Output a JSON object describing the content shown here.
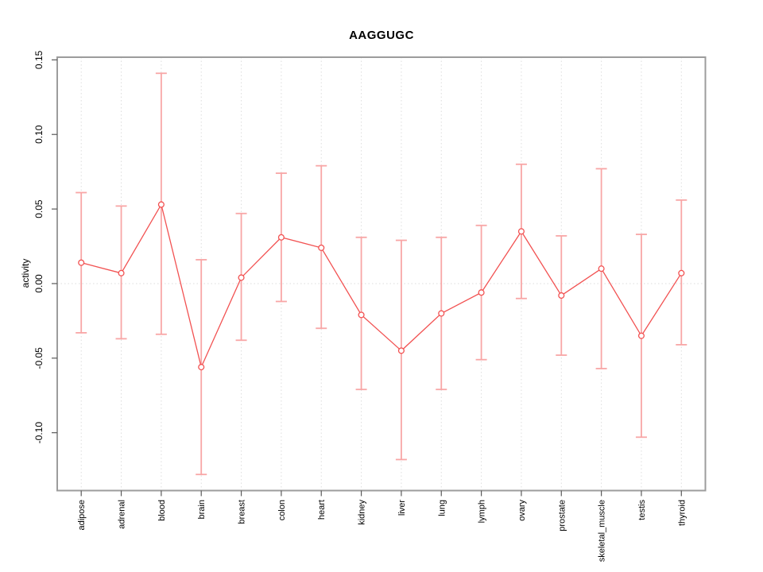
{
  "page": {
    "background": "#ffffff"
  },
  "chart_data": {
    "type": "line",
    "title": "AAGGUGC",
    "xlabel": "",
    "ylabel": "activity",
    "legend": "none",
    "grid": "vertical-dotted-gridlines-and-dotted-zero-line",
    "marker": "open-circle",
    "error_bars": true,
    "categories": [
      "adipose",
      "adrenal",
      "blood",
      "brain",
      "breast",
      "colon",
      "heart",
      "kidney",
      "liver",
      "lung",
      "lymph",
      "ovary",
      "prostate",
      "skeletal_muscle",
      "testis",
      "thyroid"
    ],
    "series": [
      {
        "name": "activity",
        "values": [
          0.014,
          0.007,
          0.053,
          -0.056,
          0.004,
          0.031,
          0.024,
          -0.021,
          -0.045,
          -0.02,
          -0.006,
          0.035,
          -0.008,
          0.01,
          -0.035,
          0.007
        ],
        "upper": [
          0.061,
          0.052,
          0.141,
          0.016,
          0.047,
          0.074,
          0.079,
          0.031,
          0.029,
          0.031,
          0.039,
          0.08,
          0.032,
          0.077,
          0.033,
          0.056
        ],
        "lower": [
          -0.033,
          -0.037,
          -0.034,
          -0.128,
          -0.038,
          -0.012,
          -0.03,
          -0.071,
          -0.118,
          -0.071,
          -0.051,
          -0.01,
          -0.048,
          -0.057,
          -0.103,
          -0.041
        ]
      }
    ],
    "y_ticks": [
      "-0.10",
      "-0.05",
      "0.00",
      "0.05",
      "0.10",
      "0.15"
    ],
    "y_tick_values": [
      -0.1,
      -0.05,
      0.0,
      0.05,
      0.1,
      0.15
    ],
    "ylim": [
      -0.1388,
      0.1518
    ],
    "zero_line": 0.0,
    "colors": {
      "line": "#f25252",
      "point_stroke": "#f25252",
      "point_fill": "#ffffff",
      "error_bar": "#f8a6a6",
      "grid": "#dddddd",
      "box": "#9c9c9c",
      "tick": "#5a5a5a",
      "text": "#000000"
    }
  }
}
